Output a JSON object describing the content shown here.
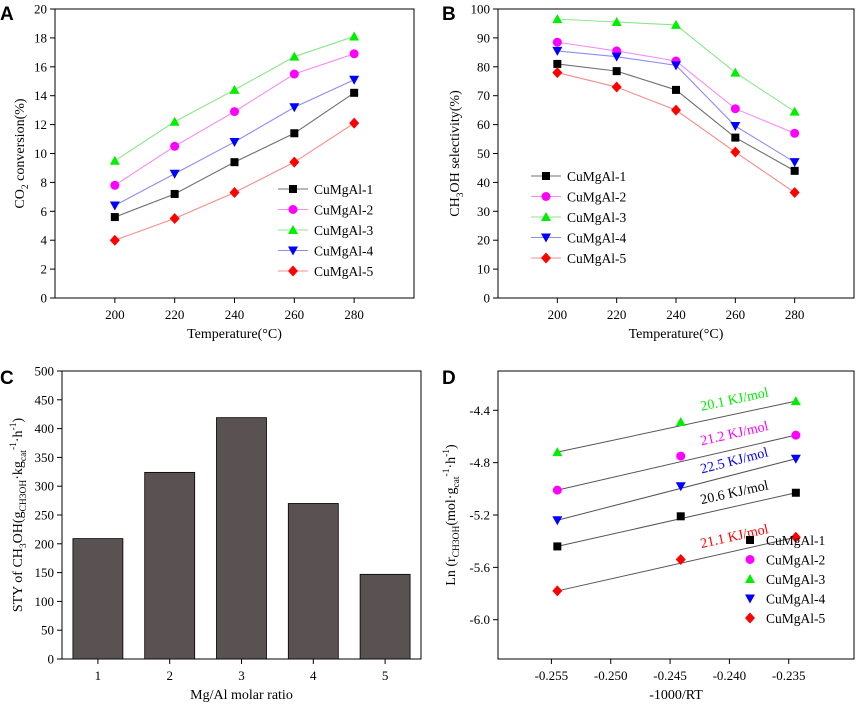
{
  "colors": {
    "series": [
      "#000000",
      "#ff00ff",
      "#00ee00",
      "#0000ff",
      "#ff0000"
    ],
    "line": [
      "#707070",
      "#f58cf5",
      "#8ce68c",
      "#8c8cf5",
      "#f58c8c"
    ],
    "bar_fill": "#5a5152",
    "fit_line": "#555555"
  },
  "markers": [
    "square",
    "circle",
    "triangle-up",
    "triangle-down",
    "diamond"
  ],
  "chart_data": [
    {
      "panel": "A",
      "type": "line",
      "x": [
        200,
        220,
        240,
        260,
        280
      ],
      "xlim": [
        180,
        300
      ],
      "ylim": [
        0,
        20
      ],
      "xticks": [
        "200",
        "220",
        "240",
        "260",
        "280"
      ],
      "yticks": [
        "0",
        "2",
        "4",
        "6",
        "8",
        "10",
        "12",
        "14",
        "16",
        "18",
        "20"
      ],
      "xlabel": "Temperature(°C)",
      "ylabel": {
        "pre": "CO",
        "sub": "2",
        "post": " conversion(%)"
      },
      "legend_position": "bottom-right",
      "series": [
        {
          "name": "CuMgAl-1",
          "values": [
            5.6,
            7.2,
            9.4,
            11.4,
            14.2
          ]
        },
        {
          "name": "CuMgAl-2",
          "values": [
            7.8,
            10.5,
            12.9,
            15.5,
            16.9
          ]
        },
        {
          "name": "CuMgAl-3",
          "values": [
            9.5,
            12.2,
            14.4,
            16.7,
            18.1
          ]
        },
        {
          "name": "CuMgAl-4",
          "values": [
            6.4,
            8.6,
            10.8,
            13.2,
            15.1
          ]
        },
        {
          "name": "CuMgAl-5",
          "values": [
            4.0,
            5.5,
            7.3,
            9.4,
            12.1
          ]
        }
      ]
    },
    {
      "panel": "B",
      "type": "line",
      "x": [
        200,
        220,
        240,
        260,
        280
      ],
      "xlim": [
        180,
        300
      ],
      "ylim": [
        0,
        100
      ],
      "xticks": [
        "200",
        "220",
        "240",
        "260",
        "280"
      ],
      "yticks": [
        "0",
        "10",
        "20",
        "30",
        "40",
        "50",
        "60",
        "70",
        "80",
        "90",
        "100"
      ],
      "xlabel": "Temperature(°C)",
      "ylabel": {
        "pre": "CH",
        "sub": "3",
        "post": "OH selectivity(%)"
      },
      "legend_position": "bottom-left",
      "series": [
        {
          "name": "CuMgAl-1",
          "values": [
            81.0,
            78.5,
            72.0,
            55.5,
            44.0
          ]
        },
        {
          "name": "CuMgAl-2",
          "values": [
            88.5,
            85.5,
            82.0,
            65.5,
            57.0
          ]
        },
        {
          "name": "CuMgAl-3",
          "values": [
            96.5,
            95.5,
            94.5,
            78.0,
            64.5
          ]
        },
        {
          "name": "CuMgAl-4",
          "values": [
            85.5,
            83.5,
            80.5,
            59.5,
            47.0
          ]
        },
        {
          "name": "CuMgAl-5",
          "values": [
            78.0,
            73.0,
            65.0,
            50.5,
            36.5
          ]
        }
      ]
    },
    {
      "panel": "C",
      "type": "bar",
      "categories": [
        "1",
        "2",
        "3",
        "4",
        "5"
      ],
      "values": [
        209,
        324,
        419,
        270,
        147
      ],
      "ylim": [
        0,
        500
      ],
      "yticks": [
        "0",
        "50",
        "100",
        "150",
        "200",
        "250",
        "300",
        "350",
        "400",
        "450",
        "500"
      ],
      "xlabel": "Mg/Al molar ratio",
      "ylabel": "STY of CH3OH(gCH3OH·kgcat-1·h-1)"
    },
    {
      "panel": "D",
      "type": "scatter",
      "x": [
        -0.2545,
        -0.2441,
        -0.2344
      ],
      "xlim": [
        -0.2595,
        -0.2295
      ],
      "ylim": [
        -6.3,
        -4.1
      ],
      "xticks": [
        "-0.255",
        "-0.250",
        "-0.245",
        "-0.240",
        "-0.235"
      ],
      "xtick_values": [
        -0.255,
        -0.25,
        -0.245,
        -0.24,
        -0.235
      ],
      "yticks": [
        "-6.0",
        "-5.6",
        "-5.2",
        "-4.8",
        "-4.4"
      ],
      "ytick_values": [
        -6.0,
        -5.6,
        -5.2,
        -4.8,
        -4.4
      ],
      "xlabel": "-1000/RT",
      "ylabel": "Ln (rCH3OH(mol·gcat-1·h-1)",
      "legend_position": "bottom-right",
      "series": [
        {
          "name": "CuMgAl-1",
          "values": [
            -5.44,
            -5.21,
            -5.03
          ],
          "activation_energy": "20.6 KJ/mol"
        },
        {
          "name": "CuMgAl-2",
          "values": [
            -5.01,
            -4.75,
            -4.59
          ],
          "activation_energy": "21.2 KJ/mol"
        },
        {
          "name": "CuMgAl-3",
          "values": [
            -4.72,
            -4.49,
            -4.33
          ],
          "activation_energy": "20.1 KJ/mol"
        },
        {
          "name": "CuMgAl-4",
          "values": [
            -5.24,
            -4.98,
            -4.77
          ],
          "activation_energy": "22.5 KJ/mol"
        },
        {
          "name": "CuMgAl-5",
          "values": [
            -5.78,
            -5.54,
            -5.37
          ],
          "activation_energy": "21.1 KJ/mol"
        }
      ]
    }
  ]
}
